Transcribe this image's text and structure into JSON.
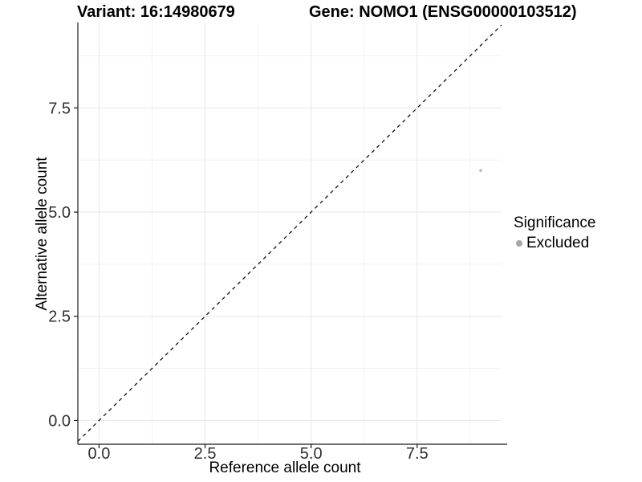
{
  "titles": {
    "variant": "Variant: 16:14980679",
    "gene": "Gene: NOMO1 (ENSG00000103512)"
  },
  "chart_data": {
    "type": "scatter",
    "xlabel": "Reference allele count",
    "ylabel": "Alternative allele count",
    "xlim": [
      -0.5,
      9.49
    ],
    "ylim": [
      -0.57,
      9.55
    ],
    "x_ticks": {
      "values": [
        0,
        2.5,
        5,
        7.5
      ],
      "labels": [
        "0.0",
        "2.5",
        "5.0",
        "7.5"
      ]
    },
    "y_ticks": {
      "values": [
        0,
        2.5,
        5,
        7.5
      ],
      "labels": [
        "0.0",
        "2.5",
        "5.0",
        "7.5"
      ]
    },
    "minor_ticks": [
      1.25,
      3.75,
      6.25,
      8.75
    ],
    "grid": "major-and-minor",
    "points": [
      {
        "x": 9,
        "y": 6,
        "series": "Excluded"
      }
    ],
    "reference_line": {
      "type": "identity y=x",
      "style": "dashed"
    },
    "legend": {
      "title": "Significance",
      "position": "right",
      "entries": [
        {
          "label": "Excluded",
          "color": "#a6a6a6"
        }
      ]
    },
    "colors": {
      "point": "#bfbfbf",
      "legend_dot": "#a6a6a6",
      "grid_major": "#e7e7e7",
      "grid_minor": "#f2f2f2",
      "axis_line": "#1a1a1a",
      "tick_label": "#303030",
      "dashed_line": "#111111",
      "background": "#ffffff"
    }
  }
}
